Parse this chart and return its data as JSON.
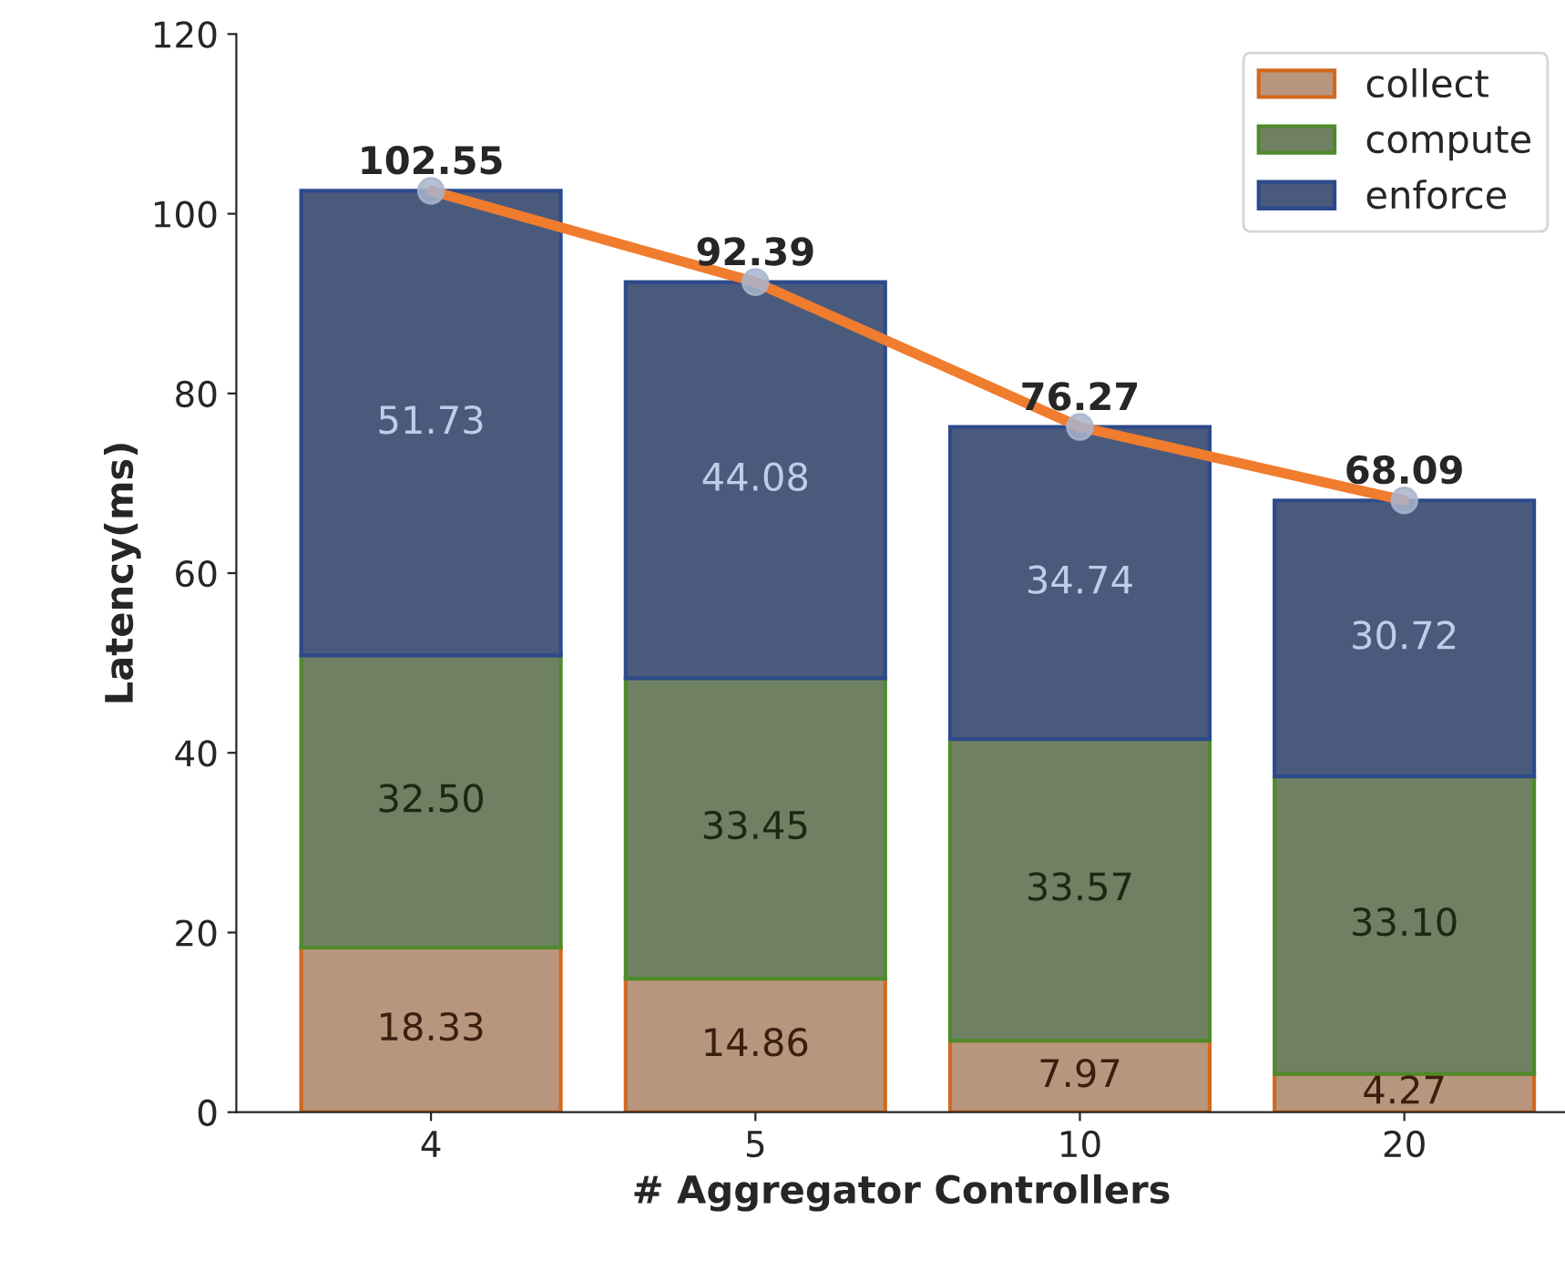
{
  "chart_data": {
    "type": "bar",
    "stacked": true,
    "xlabel": "# Aggregator Controllers",
    "ylabel": "Latency(ms)",
    "categories": [
      "4",
      "5",
      "10",
      "20"
    ],
    "series": [
      {
        "name": "collect",
        "color": "#b8967e",
        "values": [
          18.33,
          14.86,
          7.97,
          4.27
        ],
        "value_labels": [
          "18.33",
          "14.86",
          "7.97",
          "4.27"
        ]
      },
      {
        "name": "compute",
        "color": "#6f8063",
        "values": [
          32.5,
          33.45,
          33.57,
          33.1
        ],
        "value_labels": [
          "32.50",
          "33.45",
          "33.57",
          "33.10"
        ]
      },
      {
        "name": "enforce",
        "color": "#4a5a7c",
        "values": [
          51.73,
          44.08,
          34.74,
          30.72
        ],
        "value_labels": [
          "51.73",
          "44.08",
          "34.74",
          "30.72"
        ]
      },
      {
        "type": "line",
        "color": "#f07c2e",
        "marker": "circle",
        "values": [
          102.55,
          92.39,
          76.27,
          68.09
        ],
        "value_labels": [
          "102.55",
          "92.39",
          "76.27",
          "68.09"
        ]
      }
    ],
    "ylim": [
      0,
      120
    ],
    "yticks": [
      0,
      20,
      40,
      60,
      80,
      100,
      120
    ],
    "legend": "top right",
    "grid": false
  }
}
